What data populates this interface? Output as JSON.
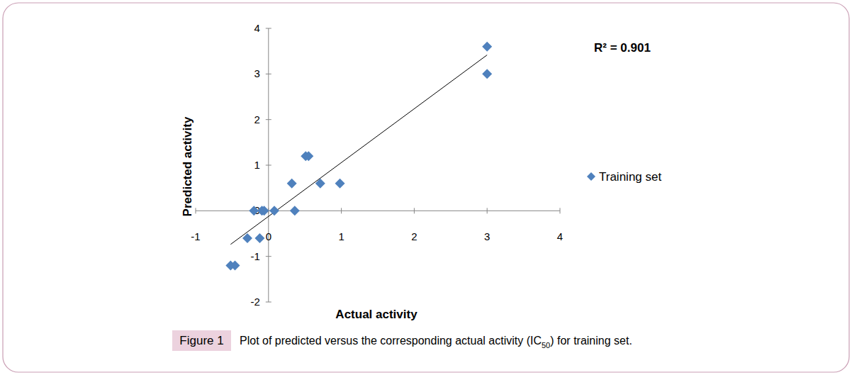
{
  "chart_data": {
    "type": "scatter",
    "x_label": "Actual activity",
    "y_label": "Predicted activity",
    "annotation": "R² = 0.901",
    "xlim": [
      -1,
      4
    ],
    "ylim": [
      -2,
      4
    ],
    "xticks": [
      -1,
      0,
      1,
      2,
      3,
      4
    ],
    "yticks": [
      -2,
      -1,
      0,
      1,
      2,
      3,
      4
    ],
    "legend": "right",
    "series": [
      {
        "name": "Training set",
        "color": "#4f81bd",
        "marker": "diamond",
        "x": [
          3,
          3,
          0.51,
          0.55,
          0.32,
          0.71,
          0.98,
          -0.2,
          -0.09,
          -0.06,
          0.08,
          0.36,
          -0.29,
          -0.12,
          -0.52,
          -0.46
        ],
        "values": [
          3.6,
          3,
          1.2,
          1.2,
          0.6,
          0.6,
          0.6,
          0,
          0,
          0,
          0,
          0,
          -0.6,
          -0.6,
          -1.2,
          -1.2
        ]
      }
    ]
  },
  "figure": {
    "label": "Figure 1",
    "caption": "Plot of predicted versus the corresponding actual activity (IC",
    "caption_subscript": "50",
    "caption_end": ") for training set."
  }
}
